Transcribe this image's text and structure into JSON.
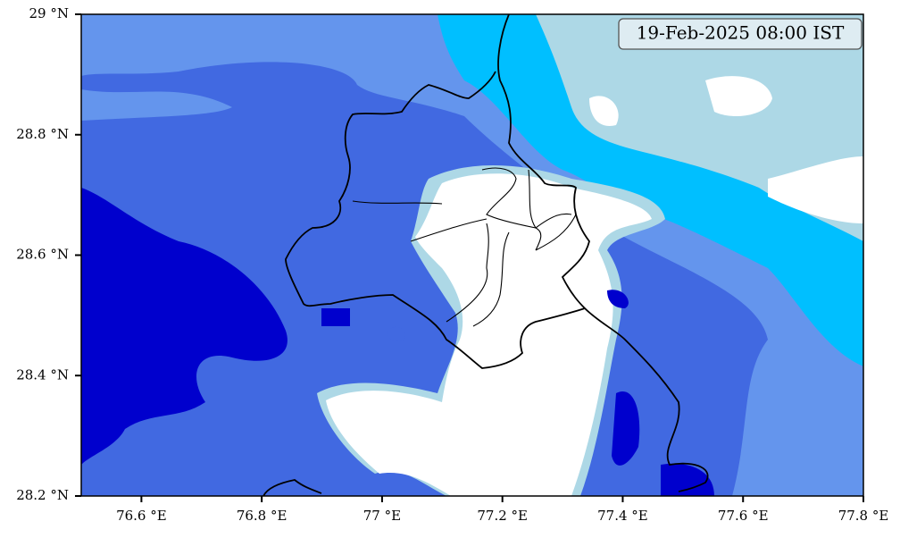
{
  "map": {
    "annotation": "19-Feb-2025 08:00 IST",
    "xlim": [
      76.5,
      77.8
    ],
    "ylim": [
      28.2,
      29
    ],
    "xticks": [
      {
        "value": 76.6,
        "label": "76.6 °E"
      },
      {
        "value": 76.8,
        "label": "76.8 °E"
      },
      {
        "value": 77.0,
        "label": "77 °E"
      },
      {
        "value": 77.2,
        "label": "77.2 °E"
      },
      {
        "value": 77.4,
        "label": "77.4 °E"
      },
      {
        "value": 77.6,
        "label": "77.6 °E"
      },
      {
        "value": 77.8,
        "label": "77.8 °E"
      }
    ],
    "yticks": [
      {
        "value": 28.2,
        "label": "28.2 °N"
      },
      {
        "value": 28.4,
        "label": "28.4 °N"
      },
      {
        "value": 28.6,
        "label": "28.6 °N"
      },
      {
        "value": 28.8,
        "label": "28.8 °N"
      },
      {
        "value": 29,
        "label": "29 °N"
      }
    ]
  }
}
